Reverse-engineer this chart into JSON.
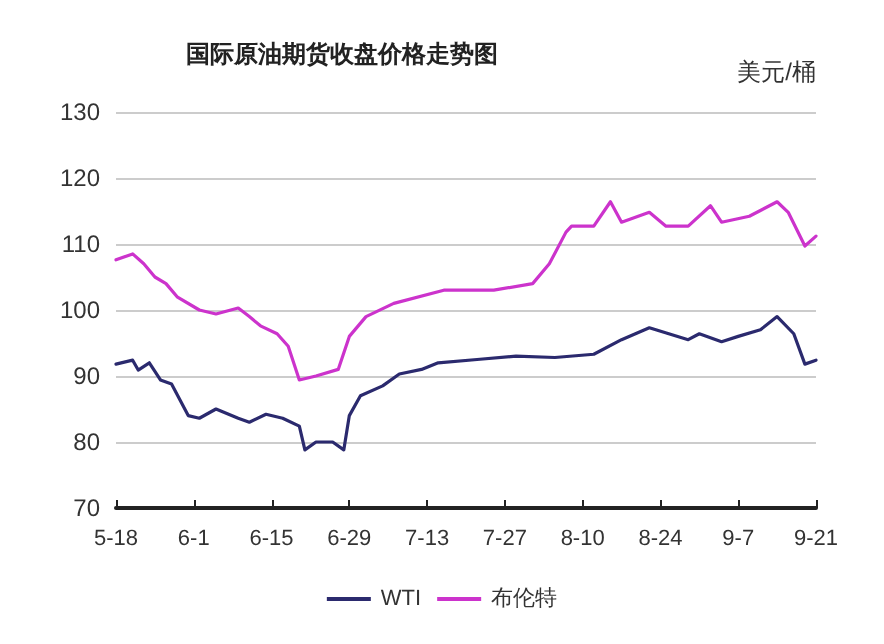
{
  "chart_data": {
    "type": "line",
    "title": "国际原油期货收盘价格走势图",
    "ylabel": "美元/桶",
    "xlim": [
      "--05-18",
      "--09-21"
    ],
    "xticks": [
      {
        "value": "--05-18",
        "label": "5-18"
      },
      {
        "value": "--06-01",
        "label": "6-1"
      },
      {
        "value": "--06-15",
        "label": "6-15"
      },
      {
        "value": "--06-29",
        "label": "6-29"
      },
      {
        "value": "--07-13",
        "label": "7-13"
      },
      {
        "value": "--07-27",
        "label": "7-27"
      },
      {
        "value": "--08-10",
        "label": "8-10"
      },
      {
        "value": "--08-24",
        "label": "8-24"
      },
      {
        "value": "--09-07",
        "label": "9-7"
      },
      {
        "value": "--09-21",
        "label": "9-21"
      }
    ],
    "ylim": [
      70,
      130
    ],
    "yticks": [
      70,
      80,
      90,
      100,
      110,
      120,
      130
    ],
    "grid": "y",
    "legend": "bottom",
    "marker": "none",
    "line_style": "solid",
    "series": [
      {
        "name": "WTI",
        "color": "#2b2a6e",
        "x": [
          "--05-18",
          "--05-21",
          "--05-22",
          "--05-24",
          "--05-26",
          "--05-28",
          "--05-31",
          "--06-02",
          "--06-05",
          "--06-09",
          "--06-11",
          "--06-14",
          "--06-17",
          "--06-20",
          "--06-21",
          "--06-23",
          "--06-26",
          "--06-28",
          "--06-29",
          "--07-01",
          "--07-05",
          "--07-08",
          "--07-12",
          "--07-15",
          "--07-22",
          "--07-29",
          "--08-05",
          "--08-12",
          "--08-17",
          "--08-22",
          "--08-29",
          "--08-31",
          "--09-04",
          "--09-07",
          "--09-11",
          "--09-14",
          "--09-17",
          "--09-19",
          "--09-21"
        ],
        "values": [
          91.8,
          92.4,
          90.9,
          92,
          89.4,
          88.8,
          84,
          83.6,
          85,
          83.6,
          83,
          84.2,
          83.6,
          82.4,
          78.8,
          80,
          80,
          78.8,
          84,
          87,
          88.5,
          90.3,
          91,
          92,
          92.5,
          93,
          92.8,
          93.3,
          95.5,
          97.3,
          95.5,
          96.4,
          95.2,
          96,
          97,
          99,
          96.4,
          91.8,
          92.4
        ]
      },
      {
        "name": "布伦特",
        "color": "#cc33cc",
        "x": [
          "--05-18",
          "--05-21",
          "--05-23",
          "--05-25",
          "--05-27",
          "--05-29",
          "--06-02",
          "--06-05",
          "--06-09",
          "--06-11",
          "--06-13",
          "--06-16",
          "--06-18",
          "--06-20",
          "--06-23",
          "--06-27",
          "--06-29",
          "--07-02",
          "--07-07",
          "--07-16",
          "--07-25",
          "--08-01",
          "--08-04",
          "--08-07",
          "--08-08",
          "--08-12",
          "--08-15",
          "--08-17",
          "--08-19",
          "--08-22",
          "--08-25",
          "--08-29",
          "--09-02",
          "--09-04",
          "--09-09",
          "--09-14",
          "--09-16",
          "--09-19",
          "--09-21"
        ],
        "values": [
          107.6,
          108.5,
          107,
          105,
          104,
          102,
          100,
          99.4,
          100.3,
          99,
          97.6,
          96.4,
          94.5,
          89.4,
          90,
          91,
          96,
          99,
          101,
          103,
          103,
          104,
          107,
          111.8,
          112.7,
          112.7,
          116.4,
          113.3,
          113.9,
          114.8,
          112.7,
          112.7,
          115.8,
          113.3,
          114.2,
          116.4,
          114.8,
          109.7,
          111.2
        ]
      }
    ]
  }
}
